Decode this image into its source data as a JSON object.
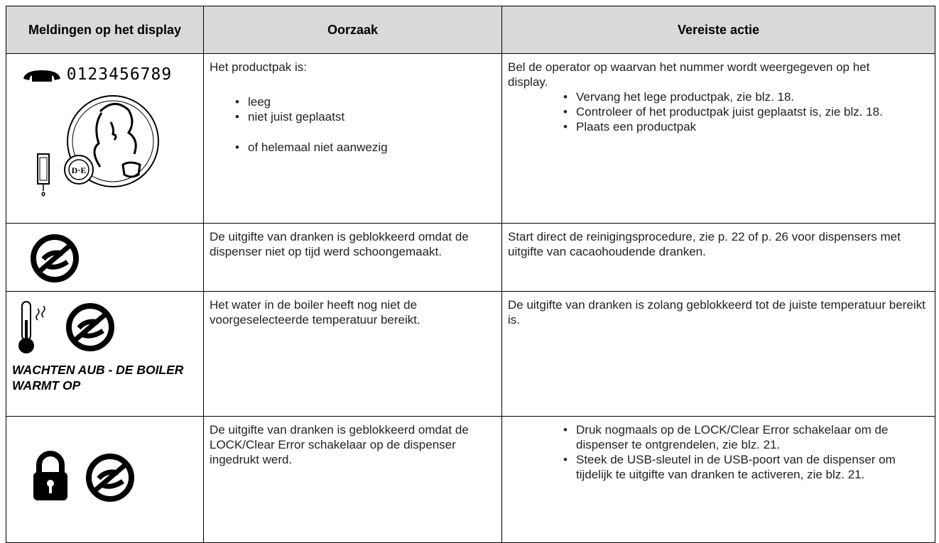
{
  "table": {
    "header": [
      "Meldingen op het display",
      "Oorzaak",
      "Vereiste actie"
    ],
    "rows": [
      {
        "display": {
          "number": "0123456789"
        },
        "cause": {
          "text": "Het productpak is:",
          "items": [
            "leeg",
            "niet juist geplaatst",
            "of helemaal niet aanwezig"
          ]
        },
        "action": {
          "text": "Bel de operator op waarvan het nummer wordt weergegeven op het display.",
          "items": [
            "Vervang het lege productpak, zie blz. 18.",
            "Controleer of het productpak juist geplaatst is, zie blz. 18.",
            "Plaats een productpak"
          ]
        }
      },
      {
        "cause": {
          "text": "De uitgifte van dranken is geblokkeerd omdat de dispenser niet op tijd werd schoongemaakt."
        },
        "action": {
          "text": "Start direct de reinigingsprocedure, zie p. 22 of p. 26 voor dispensers met uitgifte van cacaohoudende dranken."
        }
      },
      {
        "display": {
          "caption": "WACHTEN AUB - DE BOILER WARMT OP"
        },
        "cause": {
          "text": "Het water in de boiler heeft nog niet de voorgeselecteerde temperatuur bereikt."
        },
        "action": {
          "text": "De uitgifte van dranken is zolang geblokkeerd tot de juiste temperatuur bereikt is."
        }
      },
      {
        "cause": {
          "text": "De uitgifte van dranken is geblokkeerd omdat de LOCK/Clear Error schakelaar op de dispenser ingedrukt werd."
        },
        "action": {
          "items": [
            "Druk nogmaals op de LOCK/Clear Error schakelaar om de dispenser te ontgrendelen, zie blz. 21.",
            "Steek de USB-sleutel in de USB-poort van de dispenser om tijdelijk te uitgifte van dranken te activeren, zie blz. 21."
          ]
        }
      }
    ]
  }
}
